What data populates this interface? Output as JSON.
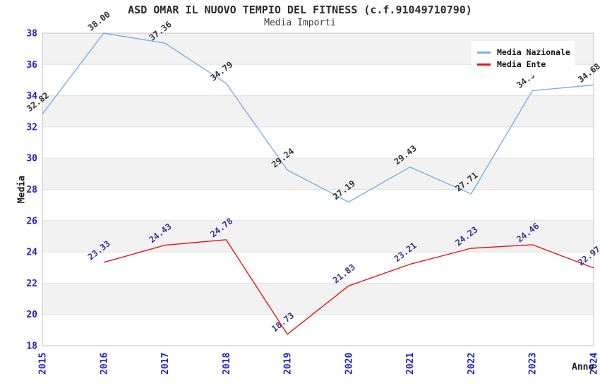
{
  "chart_data": {
    "type": "line",
    "title": "ASD OMAR IL NUOVO TEMPIO DEL FITNESS (c.f.91049710790)",
    "subtitle": "Media Importi",
    "xlabel": "Anno",
    "ylabel": "Media",
    "ylim": [
      18,
      38
    ],
    "ytick_step": 2,
    "yticks": [
      18,
      20,
      22,
      24,
      26,
      28,
      30,
      32,
      34,
      36,
      38
    ],
    "grid": "horizontal gridlines with alternating gray/white 2-unit bands",
    "legend_position": "top-right",
    "categories": [
      "2015",
      "2016",
      "2017",
      "2018",
      "2019",
      "2020",
      "2021",
      "2022",
      "2023",
      "2024"
    ],
    "series": [
      {
        "name": "Media Nazionale",
        "color": "#7BAEE8",
        "label_color": "#333333",
        "values": [
          32.82,
          38.0,
          37.36,
          34.79,
          29.24,
          27.19,
          29.43,
          27.71,
          34.32,
          34.68
        ]
      },
      {
        "name": "Media Ente",
        "color": "#EA1414",
        "label_color": "#333399",
        "values": [
          null,
          23.33,
          24.43,
          24.78,
          18.73,
          21.83,
          23.21,
          24.23,
          24.46,
          22.97
        ]
      }
    ],
    "colors": {
      "axis_tick_text": "#2121CC",
      "band_gray": "#F2F2F2",
      "gridline": "#E1E1E1",
      "plot_border": "#C3C3C3"
    }
  }
}
